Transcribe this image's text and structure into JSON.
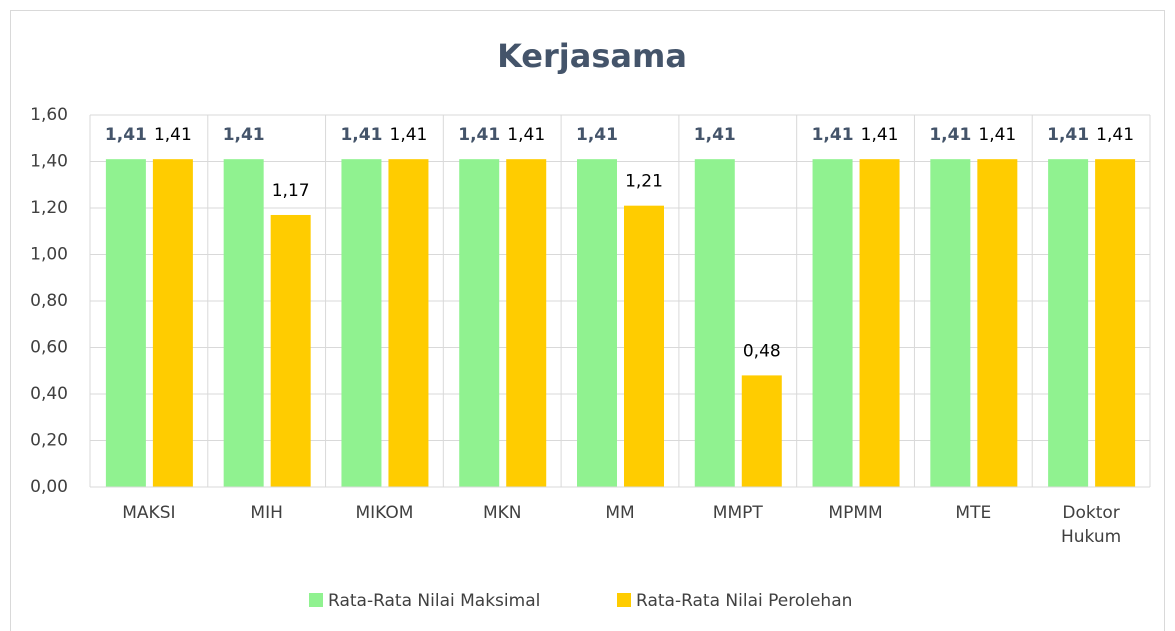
{
  "chart_data": {
    "type": "bar",
    "title": "Kerjasama",
    "categories": [
      "MAKSI",
      "MIH",
      "MIKOM",
      "MKN",
      "MM",
      "MMPT",
      "MPMM",
      "MTE",
      "Doktor Hukum"
    ],
    "series": [
      {
        "name": "Rata-Rata Nilai Maksimal",
        "color": "#90f290",
        "values": [
          1.41,
          1.41,
          1.41,
          1.41,
          1.41,
          1.41,
          1.41,
          1.41,
          1.41
        ],
        "value_labels": [
          "1,41",
          "1,41",
          "1,41",
          "1,41",
          "1,41",
          "1,41",
          "1,41",
          "1,41",
          "1,41"
        ]
      },
      {
        "name": "Rata-Rata Nilai Perolehan",
        "color": "#ffcc00",
        "values": [
          1.41,
          1.17,
          1.41,
          1.41,
          1.21,
          0.48,
          1.41,
          1.41,
          1.41
        ],
        "value_labels": [
          "1,41",
          "1,17",
          "1,41",
          "1,41",
          "1,21",
          "0,48",
          "1,41",
          "1,41",
          "1,41"
        ]
      }
    ],
    "ylim": [
      0,
      1.6
    ],
    "yticks": [
      {
        "value": 0,
        "label": "0,00"
      },
      {
        "value": 0.2,
        "label": "0,20"
      },
      {
        "value": 0.4,
        "label": "0,40"
      },
      {
        "value": 0.6,
        "label": "0,60"
      },
      {
        "value": 0.8,
        "label": "0,80"
      },
      {
        "value": 1.0,
        "label": "1,00"
      },
      {
        "value": 1.2,
        "label": "1,20"
      },
      {
        "value": 1.4,
        "label": "1,40"
      },
      {
        "value": 1.6,
        "label": "1,60"
      }
    ],
    "grid": true,
    "legend": "bottom"
  }
}
